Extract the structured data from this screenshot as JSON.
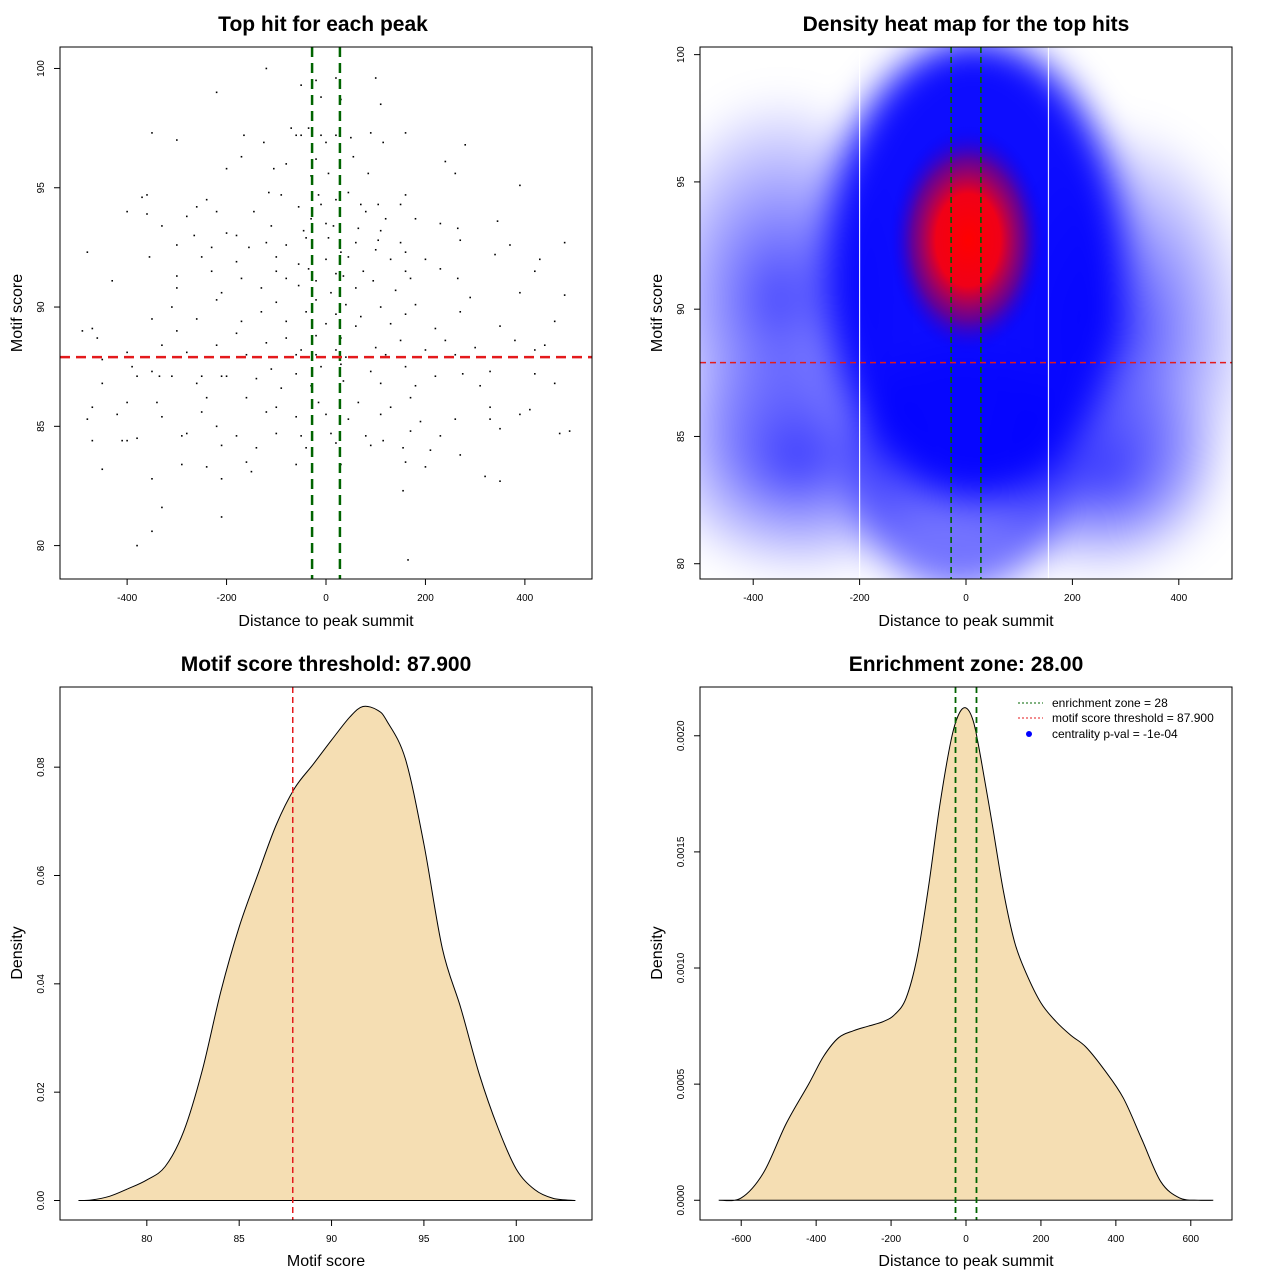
{
  "colors": {
    "threshold_line": "#e41a1c",
    "zone_line": "#006400",
    "density_fill": "#f5deb3",
    "heat_low": "#ffffff",
    "heat_mid": "#0000ff",
    "heat_high": "#ff0000",
    "point": "#000000",
    "legend_dot": "#0000ff"
  },
  "chart_data": [
    {
      "type": "scatter",
      "title": "Top hit for each peak",
      "xlabel": "Distance to peak summit",
      "ylabel": "Motif score",
      "xlim": [
        -535,
        535
      ],
      "ylim": [
        78.6,
        100.9
      ],
      "xticks": [
        -400,
        -200,
        0,
        200,
        400
      ],
      "yticks": [
        80,
        85,
        90,
        95,
        100
      ],
      "vlines": [
        -28,
        28
      ],
      "hline": 87.9,
      "points": [
        [
          -120,
          100
        ],
        [
          -50,
          99.3
        ],
        [
          -20,
          99.5
        ],
        [
          20,
          99.6
        ],
        [
          100,
          99.6
        ],
        [
          -220,
          99
        ],
        [
          -10,
          98.8
        ],
        [
          30,
          98.7
        ],
        [
          110,
          98.5
        ],
        [
          -70,
          97.5
        ],
        [
          -35,
          97.5
        ],
        [
          -60,
          97.2
        ],
        [
          -50,
          97.2
        ],
        [
          -10,
          97.2
        ],
        [
          20,
          97.2
        ],
        [
          50,
          97.1
        ],
        [
          90,
          97.3
        ],
        [
          160,
          97.3
        ],
        [
          -350,
          97.3
        ],
        [
          -300,
          97
        ],
        [
          -165,
          97.2
        ],
        [
          -125,
          96.9
        ],
        [
          0,
          96.9
        ],
        [
          115,
          96.9
        ],
        [
          280,
          96.8
        ],
        [
          -170,
          96.3
        ],
        [
          -20,
          96.2
        ],
        [
          55,
          96.3
        ],
        [
          -80,
          96
        ],
        [
          240,
          96.1
        ],
        [
          -200,
          95.8
        ],
        [
          -105,
          95.8
        ],
        [
          -30,
          95.5
        ],
        [
          5,
          95.6
        ],
        [
          85,
          95.6
        ],
        [
          260,
          95.6
        ],
        [
          -360,
          94.7
        ],
        [
          -370,
          94.6
        ],
        [
          -115,
          94.8
        ],
        [
          -90,
          94.7
        ],
        [
          -15,
          94.7
        ],
        [
          45,
          94.8
        ],
        [
          160,
          94.7
        ],
        [
          390,
          95.1
        ],
        [
          -240,
          94.5
        ],
        [
          -260,
          94.2
        ],
        [
          -55,
          94.2
        ],
        [
          -10,
          94.3
        ],
        [
          20,
          94.5
        ],
        [
          70,
          94.3
        ],
        [
          105,
          94.3
        ],
        [
          150,
          94.3
        ],
        [
          -400,
          94
        ],
        [
          -360,
          93.9
        ],
        [
          -220,
          94
        ],
        [
          -280,
          93.8
        ],
        [
          -145,
          94
        ],
        [
          -30,
          93.7
        ],
        [
          0,
          93.5
        ],
        [
          80,
          94
        ],
        [
          120,
          93.7
        ],
        [
          180,
          93.7
        ],
        [
          230,
          93.5
        ],
        [
          345,
          93.6
        ],
        [
          -330,
          93.4
        ],
        [
          -200,
          93.1
        ],
        [
          -110,
          93.4
        ],
        [
          -45,
          93.2
        ],
        [
          15,
          93.4
        ],
        [
          65,
          93.3
        ],
        [
          110,
          93.2
        ],
        [
          265,
          93.3
        ],
        [
          -265,
          93
        ],
        [
          -180,
          93
        ],
        [
          -120,
          92.7
        ],
        [
          -40,
          92.9
        ],
        [
          5,
          92.9
        ],
        [
          60,
          92.7
        ],
        [
          105,
          92.8
        ],
        [
          150,
          92.7
        ],
        [
          270,
          92.8
        ],
        [
          370,
          92.6
        ],
        [
          -300,
          92.6
        ],
        [
          -230,
          92.5
        ],
        [
          -155,
          92.5
        ],
        [
          -80,
          92.6
        ],
        [
          30,
          92.3
        ],
        [
          100,
          92.4
        ],
        [
          160,
          92.3
        ],
        [
          480,
          92.7
        ],
        [
          -480,
          92.3
        ],
        [
          -355,
          92.1
        ],
        [
          -250,
          92.1
        ],
        [
          -180,
          91.9
        ],
        [
          -100,
          92.1
        ],
        [
          -55,
          91.8
        ],
        [
          0,
          92
        ],
        [
          45,
          92.1
        ],
        [
          130,
          92
        ],
        [
          200,
          92
        ],
        [
          340,
          92.2
        ],
        [
          430,
          92
        ],
        [
          -230,
          91.5
        ],
        [
          -100,
          91.5
        ],
        [
          -35,
          91.6
        ],
        [
          20,
          91.4
        ],
        [
          75,
          91.5
        ],
        [
          160,
          91.5
        ],
        [
          230,
          91.6
        ],
        [
          420,
          91.5
        ],
        [
          -300,
          91.3
        ],
        [
          -170,
          91.2
        ],
        [
          -80,
          91.2
        ],
        [
          -20,
          91.1
        ],
        [
          35,
          91.3
        ],
        [
          95,
          91.1
        ],
        [
          170,
          91.2
        ],
        [
          265,
          91.2
        ],
        [
          -430,
          91.1
        ],
        [
          -300,
          90.8
        ],
        [
          -210,
          90.6
        ],
        [
          -130,
          90.8
        ],
        [
          -55,
          90.9
        ],
        [
          10,
          90.6
        ],
        [
          60,
          90.8
        ],
        [
          140,
          90.7
        ],
        [
          290,
          90.4
        ],
        [
          390,
          90.6
        ],
        [
          480,
          90.5
        ],
        [
          -220,
          90.3
        ],
        [
          -100,
          90.2
        ],
        [
          -20,
          90.3
        ],
        [
          40,
          90.1
        ],
        [
          110,
          90
        ],
        [
          180,
          90.1
        ],
        [
          -310,
          90
        ],
        [
          -130,
          89.8
        ],
        [
          -40,
          89.8
        ],
        [
          20,
          89.7
        ],
        [
          70,
          89.6
        ],
        [
          160,
          89.7
        ],
        [
          270,
          89.8
        ],
        [
          -470,
          89.1
        ],
        [
          -350,
          89.5
        ],
        [
          -260,
          89.5
        ],
        [
          -170,
          89.4
        ],
        [
          -80,
          89.4
        ],
        [
          0,
          89.3
        ],
        [
          60,
          89.2
        ],
        [
          130,
          89.3
        ],
        [
          220,
          89.1
        ],
        [
          350,
          89.2
        ],
        [
          460,
          89.4
        ],
        [
          -490,
          89
        ],
        [
          -300,
          89
        ],
        [
          -180,
          88.9
        ],
        [
          -80,
          88.7
        ],
        [
          -20,
          88.8
        ],
        [
          30,
          88.7
        ],
        [
          150,
          88.6
        ],
        [
          240,
          88.6
        ],
        [
          380,
          88.6
        ],
        [
          -460,
          88.7
        ],
        [
          -330,
          88.4
        ],
        [
          -220,
          88.4
        ],
        [
          -120,
          88.5
        ],
        [
          -50,
          88.2
        ],
        [
          20,
          88.2
        ],
        [
          100,
          88.3
        ],
        [
          200,
          88.2
        ],
        [
          300,
          88.3
        ],
        [
          440,
          88.4
        ],
        [
          -400,
          88.1
        ],
        [
          -280,
          88.1
        ],
        [
          -160,
          88
        ],
        [
          -60,
          88
        ],
        [
          -20,
          88
        ],
        [
          40,
          87.9
        ],
        [
          120,
          88
        ],
        [
          260,
          88
        ],
        [
          420,
          88.2
        ],
        [
          -450,
          87.8
        ],
        [
          -390,
          87.5
        ],
        [
          -350,
          87.3
        ],
        [
          -310,
          87.1
        ],
        [
          -250,
          87.1
        ],
        [
          -200,
          87.1
        ],
        [
          -110,
          87.4
        ],
        [
          -60,
          87.2
        ],
        [
          -10,
          87.5
        ],
        [
          30,
          87.6
        ],
        [
          90,
          87.3
        ],
        [
          160,
          87.5
        ],
        [
          220,
          87.1
        ],
        [
          275,
          87.2
        ],
        [
          330,
          87.3
        ],
        [
          420,
          87.2
        ],
        [
          -450,
          86.8
        ],
        [
          -380,
          87.1
        ],
        [
          -335,
          87.1
        ],
        [
          -260,
          86.8
        ],
        [
          -210,
          87.1
        ],
        [
          -140,
          87
        ],
        [
          -90,
          86.6
        ],
        [
          -30,
          86.7
        ],
        [
          35,
          86.9
        ],
        [
          110,
          86.8
        ],
        [
          180,
          86.7
        ],
        [
          310,
          86.7
        ],
        [
          460,
          86.8
        ],
        [
          -470,
          85.8
        ],
        [
          -400,
          86
        ],
        [
          -340,
          86
        ],
        [
          -240,
          86.2
        ],
        [
          -160,
          86.2
        ],
        [
          -100,
          85.8
        ],
        [
          -15,
          86
        ],
        [
          65,
          86
        ],
        [
          130,
          85.8
        ],
        [
          170,
          86.2
        ],
        [
          330,
          85.8
        ],
        [
          -420,
          85.5
        ],
        [
          -480,
          85.3
        ],
        [
          -330,
          85.4
        ],
        [
          -250,
          85.6
        ],
        [
          -120,
          85.6
        ],
        [
          -60,
          85.4
        ],
        [
          0,
          85.5
        ],
        [
          45,
          85.3
        ],
        [
          110,
          85.5
        ],
        [
          190,
          85.2
        ],
        [
          260,
          85.3
        ],
        [
          330,
          85.3
        ],
        [
          390,
          85.5
        ],
        [
          410,
          85.7
        ],
        [
          -470,
          84.4
        ],
        [
          -410,
          84.4
        ],
        [
          -380,
          84.5
        ],
        [
          -280,
          84.7
        ],
        [
          -220,
          85
        ],
        [
          -180,
          84.6
        ],
        [
          -100,
          84.7
        ],
        [
          -50,
          84.6
        ],
        [
          10,
          84.7
        ],
        [
          80,
          84.6
        ],
        [
          115,
          84.4
        ],
        [
          170,
          84.8
        ],
        [
          230,
          84.6
        ],
        [
          350,
          84.9
        ],
        [
          470,
          84.7
        ],
        [
          490,
          84.8
        ],
        [
          -400,
          84.4
        ],
        [
          -290,
          84.6
        ],
        [
          -210,
          84.2
        ],
        [
          -140,
          84.1
        ],
        [
          -40,
          84.1
        ],
        [
          20,
          84.3
        ],
        [
          90,
          84.2
        ],
        [
          155,
          84.1
        ],
        [
          210,
          84
        ],
        [
          -450,
          83.2
        ],
        [
          -290,
          83.4
        ],
        [
          -240,
          83.3
        ],
        [
          -160,
          83.5
        ],
        [
          -60,
          83.4
        ],
        [
          30,
          83.4
        ],
        [
          160,
          83.5
        ],
        [
          200,
          83.3
        ],
        [
          270,
          83.8
        ],
        [
          -350,
          82.8
        ],
        [
          -210,
          82.8
        ],
        [
          -150,
          83.1
        ],
        [
          155,
          82.3
        ],
        [
          320,
          82.9
        ],
        [
          350,
          82.7
        ],
        [
          -330,
          81.6
        ],
        [
          -210,
          81.2
        ],
        [
          -350,
          80.6
        ],
        [
          -380,
          80
        ],
        [
          165,
          79.4
        ]
      ]
    },
    {
      "type": "heatmap",
      "title": "Density heat map for the top hits",
      "xlabel": "Distance to peak summit",
      "ylabel": "Motif score",
      "xlim": [
        -500,
        500
      ],
      "ylim": [
        79.4,
        100.3
      ],
      "xticks": [
        -400,
        -200,
        0,
        200,
        400
      ],
      "yticks": [
        80,
        85,
        90,
        95,
        100
      ],
      "vlines": [
        -28,
        28
      ],
      "hline": 87.9,
      "white_vlines": [
        -200,
        155
      ],
      "color_scale": [
        "white",
        "blue",
        "red"
      ],
      "peak": [
        20,
        92.5
      ]
    },
    {
      "type": "area",
      "title": "Motif score threshold: 87.900",
      "xlabel": "Motif score",
      "ylabel": "Density",
      "xlim": [
        75.3,
        104.1
      ],
      "ylim": [
        -0.0036,
        0.0948
      ],
      "xticks": [
        80,
        85,
        90,
        95,
        100
      ],
      "yticks": [
        0.0,
        0.02,
        0.04,
        0.06,
        0.08
      ],
      "ytick_labels": [
        "0.00",
        "0.02",
        "0.04",
        "0.06",
        "0.08"
      ],
      "vline": 87.9,
      "x": [
        76.3,
        77,
        78,
        79,
        80,
        81,
        82,
        83,
        84,
        85,
        86,
        87,
        88,
        89,
        90,
        91,
        91.7,
        92.5,
        93,
        94,
        95,
        96,
        97,
        98,
        99,
        100,
        101,
        102,
        103.2
      ],
      "y": [
        0,
        0.0001,
        0.0008,
        0.0022,
        0.0038,
        0.0063,
        0.0128,
        0.024,
        0.0385,
        0.0505,
        0.0601,
        0.0693,
        0.0761,
        0.0805,
        0.085,
        0.0893,
        0.0912,
        0.0905,
        0.0885,
        0.0815,
        0.0658,
        0.0465,
        0.0355,
        0.0233,
        0.0135,
        0.0058,
        0.002,
        0.0004,
        0
      ]
    },
    {
      "type": "area",
      "title": "Enrichment zone: 28.00",
      "xlabel": "Distance to peak summit",
      "ylabel": "Density",
      "xlim": [
        -710,
        710
      ],
      "ylim": [
        -8.5e-05,
        0.00221
      ],
      "xticks": [
        -600,
        -400,
        -200,
        0,
        200,
        400,
        600
      ],
      "yticks": [
        0,
        0.0005,
        0.001,
        0.0015,
        0.002
      ],
      "ytick_labels": [
        "0.0000",
        "0.0005",
        "0.0010",
        "0.0015",
        "0.0020"
      ],
      "vlines": [
        -28,
        28
      ],
      "x": [
        -660,
        -600,
        -540,
        -480,
        -420,
        -380,
        -340,
        -300,
        -260,
        -220,
        -190,
        -160,
        -130,
        -100,
        -70,
        -40,
        -20,
        0,
        20,
        40,
        70,
        100,
        130,
        160,
        200,
        240,
        280,
        320,
        370,
        420,
        470,
        520,
        570,
        620,
        660
      ],
      "y": [
        0,
        1e-05,
        0.00012,
        0.00033,
        0.0005,
        0.00062,
        0.0007,
        0.00073,
        0.00075,
        0.00077,
        0.0008,
        0.00087,
        0.00105,
        0.00135,
        0.0017,
        0.00198,
        0.00209,
        0.00212,
        0.00206,
        0.0019,
        0.00162,
        0.00133,
        0.00111,
        0.00098,
        0.00085,
        0.00077,
        0.00071,
        0.00066,
        0.00056,
        0.00044,
        0.00026,
        8e-05,
        1e-05,
        0,
        0
      ],
      "legend": {
        "position": "top-right",
        "entries": [
          {
            "label": "enrichment zone = 28",
            "kind": "dotted-line",
            "color": "#006400"
          },
          {
            "label": "motif score threshold = 87.900",
            "kind": "dotted-line",
            "color": "#e41a1c"
          },
          {
            "label": "centrality p-val = -1e-04",
            "kind": "dot",
            "color": "#0000ff"
          }
        ]
      }
    }
  ]
}
